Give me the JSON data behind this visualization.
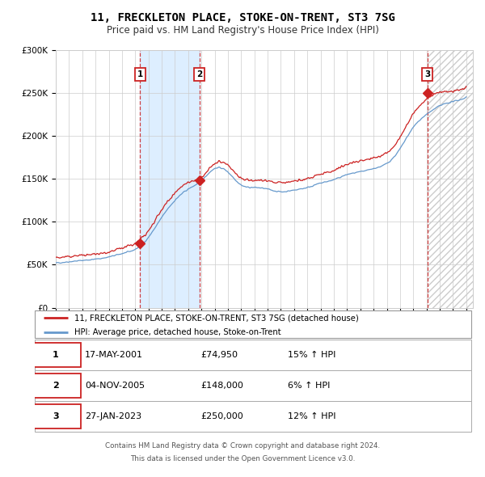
{
  "title": "11, FRECKLETON PLACE, STOKE-ON-TRENT, ST3 7SG",
  "subtitle": "Price paid vs. HM Land Registry's House Price Index (HPI)",
  "legend_line1": "11, FRECKLETON PLACE, STOKE-ON-TRENT, ST3 7SG (detached house)",
  "legend_line2": "HPI: Average price, detached house, Stoke-on-Trent",
  "footer1": "Contains HM Land Registry data © Crown copyright and database right 2024.",
  "footer2": "This data is licensed under the Open Government Licence v3.0.",
  "transactions": [
    {
      "num": 1,
      "date": "17-MAY-2001",
      "price": "£74,950",
      "change": "15% ↑ HPI",
      "year": 2001.37,
      "value": 74950
    },
    {
      "num": 2,
      "date": "04-NOV-2005",
      "price": "£148,000",
      "change": "6% ↑ HPI",
      "year": 2005.84,
      "value": 148000
    },
    {
      "num": 3,
      "date": "27-JAN-2023",
      "price": "£250,000",
      "change": "12% ↑ HPI",
      "year": 2023.07,
      "value": 250000
    }
  ],
  "ylim": [
    0,
    300000
  ],
  "xlim_start": 1995.0,
  "xlim_end": 2026.5,
  "hpi_color": "#6699cc",
  "price_color": "#cc2222",
  "background_color": "#ffffff",
  "grid_color": "#cccccc",
  "shade_color": "#ddeeff",
  "hatch_color": "#cccccc",
  "title_fontsize": 10,
  "subtitle_fontsize": 8.5
}
